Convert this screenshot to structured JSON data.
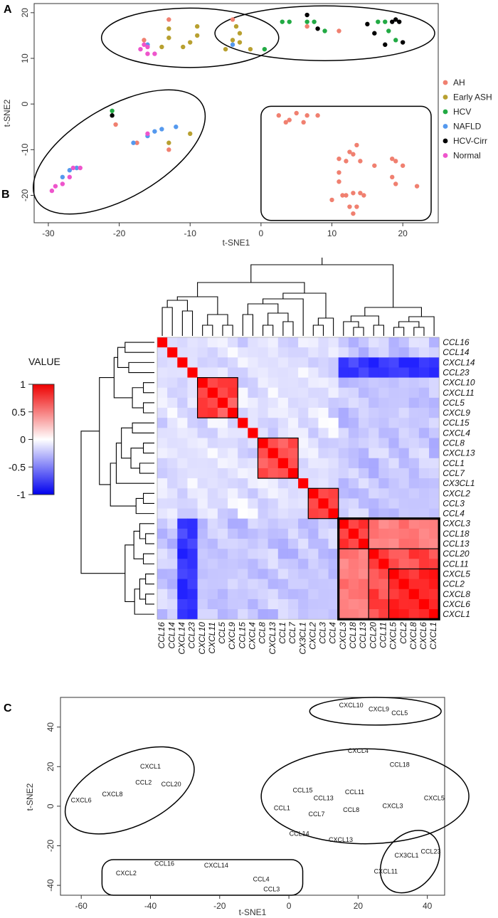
{
  "chart_data": [
    {
      "panel": "A",
      "type": "scatter",
      "xlabel": "t-SNE1",
      "ylabel": "t-SNE2",
      "xlim": [
        -32,
        25
      ],
      "ylim": [
        -26,
        22
      ],
      "xticks": [
        -30,
        -20,
        -10,
        0,
        10,
        20
      ],
      "yticks": [
        -20,
        -10,
        0,
        10,
        20
      ],
      "legend_position": "right",
      "series": [
        {
          "name": "AH",
          "color": "#f08070",
          "points": [
            [
              -13,
              18.5
            ],
            [
              -4,
              18.5
            ],
            [
              6.5,
              17
            ],
            [
              11,
              16
            ],
            [
              -16.5,
              14
            ],
            [
              -20.5,
              -4.5
            ],
            [
              -17.5,
              -8.5
            ],
            [
              -26,
              -14
            ],
            [
              -13,
              -10
            ],
            [
              2.5,
              -2.5
            ],
            [
              3.5,
              -4
            ],
            [
              4,
              -3.5
            ],
            [
              5,
              -2
            ],
            [
              6,
              -4
            ],
            [
              6.5,
              -2.5
            ],
            [
              8,
              -2.5
            ],
            [
              13.5,
              -9
            ],
            [
              12.5,
              -10.5
            ],
            [
              13,
              -11
            ],
            [
              11,
              -12
            ],
            [
              12,
              -12.5
            ],
            [
              14,
              -12.5
            ],
            [
              11,
              -15
            ],
            [
              11,
              -17
            ],
            [
              16,
              -13.5
            ],
            [
              18.5,
              -12
            ],
            [
              19,
              -12.5
            ],
            [
              20,
              -13.5
            ],
            [
              18.5,
              -16
            ],
            [
              19,
              -17.5
            ],
            [
              22,
              -18
            ],
            [
              10,
              -21
            ],
            [
              12,
              -20
            ],
            [
              13,
              -19.5
            ],
            [
              14,
              -19.5
            ],
            [
              14.5,
              -20
            ],
            [
              13.5,
              -22.5
            ],
            [
              12.5,
              -22.5
            ],
            [
              13,
              -24
            ],
            [
              11.5,
              -20
            ]
          ]
        },
        {
          "name": "Early ASH",
          "color": "#b8a030",
          "points": [
            [
              -13,
              16.5
            ],
            [
              -13,
              14.5
            ],
            [
              -14,
              12.5
            ],
            [
              -9,
              17
            ],
            [
              -9,
              15
            ],
            [
              -10,
              13.5
            ],
            [
              -11,
              12.5
            ],
            [
              -3.5,
              17
            ],
            [
              -3,
              15.5
            ],
            [
              -4,
              14
            ],
            [
              -3,
              13.5
            ],
            [
              -5,
              12
            ],
            [
              -1.5,
              12
            ],
            [
              -13,
              -8.5
            ],
            [
              -10,
              -6.5
            ]
          ]
        },
        {
          "name": "HCV",
          "color": "#22aa44",
          "points": [
            [
              3,
              18
            ],
            [
              4,
              18
            ],
            [
              6.5,
              18
            ],
            [
              7.5,
              18
            ],
            [
              9,
              16
            ],
            [
              16.5,
              18
            ],
            [
              17.5,
              18
            ],
            [
              18,
              16
            ],
            [
              19,
              14
            ],
            [
              0.5,
              12
            ],
            [
              -21,
              -1.5
            ]
          ]
        },
        {
          "name": "NAFLD",
          "color": "#5599ee",
          "points": [
            [
              -4,
              13
            ],
            [
              -16,
              13
            ],
            [
              -28,
              -16
            ],
            [
              -27,
              -14.5
            ],
            [
              -26,
              -14
            ],
            [
              -18,
              -8.5
            ],
            [
              -16,
              -7
            ],
            [
              -15,
              -6
            ],
            [
              -14,
              -5.5
            ],
            [
              -12,
              -5
            ]
          ]
        },
        {
          "name": "HCV-Cirr",
          "color": "#000000",
          "points": [
            [
              6.5,
              19.5
            ],
            [
              8,
              16.5
            ],
            [
              15,
              17.5
            ],
            [
              16,
              15.5
            ],
            [
              18.5,
              18
            ],
            [
              19,
              18.5
            ],
            [
              19.5,
              18
            ],
            [
              20,
              13.5
            ],
            [
              17.5,
              13
            ],
            [
              -21,
              -2.5
            ]
          ]
        },
        {
          "name": "Normal",
          "color": "#ee55cc",
          "points": [
            [
              -16.5,
              13
            ],
            [
              -16,
              12.5
            ],
            [
              -17,
              12
            ],
            [
              -16,
              11
            ],
            [
              -15,
              11
            ],
            [
              -29.5,
              -19
            ],
            [
              -29,
              -18
            ],
            [
              -28,
              -17.5
            ],
            [
              -27,
              -16
            ],
            [
              -26.5,
              -14
            ],
            [
              -25.5,
              -14
            ],
            [
              -16,
              -6.5
            ]
          ]
        }
      ],
      "legend": [
        "AH",
        "Early ASH",
        "HCV",
        "NAFLD",
        "HCV-Cirr",
        "Normal"
      ],
      "annotations": "five circled clusters"
    },
    {
      "panel": "B",
      "type": "heatmap",
      "colorbar_title": "VALUE",
      "colorbar_ticks": [
        "1",
        "0.5",
        "0",
        "-0.5",
        "-1"
      ],
      "colorbar_range": [
        -1,
        1
      ],
      "rows": [
        "CCL16",
        "CCL14",
        "CXCL14",
        "CCL23",
        "CXCL10",
        "CXCL11",
        "CCL5",
        "CXCL9",
        "CCL15",
        "CXCL4",
        "CCL8",
        "CXCL13",
        "CCL1",
        "CCL7",
        "CX3CL1",
        "CXCL2",
        "CCL3",
        "CCL4",
        "CXCL3",
        "CCL18",
        "CCL13",
        "CCL20",
        "CCL11",
        "CXCL5",
        "CCL2",
        "CXCL8",
        "CXCL6",
        "CXCL1"
      ],
      "columns": [
        "CCL16",
        "CCL14",
        "CXCL14",
        "CCL23",
        "CXCL10",
        "CXCL11",
        "CCL5",
        "CXCL9",
        "CCL15",
        "CXCL4",
        "CCL8",
        "CXCL13",
        "CCL1",
        "CCL7",
        "CX3CL1",
        "CXCL2",
        "CCL3",
        "CCL4",
        "CXCL3",
        "CCL18",
        "CCL13",
        "CCL20",
        "CCL11",
        "CXCL5",
        "CCL2",
        "CXCL8",
        "CXCL6",
        "CXCL1"
      ],
      "clusters": [
        [
          4,
          7
        ],
        [
          10,
          13
        ],
        [
          15,
          17
        ],
        [
          18,
          27
        ],
        [
          18,
          20
        ],
        [
          21,
          27
        ],
        [
          23,
          27
        ]
      ],
      "emphasized_cluster": [
        18,
        27
      ]
    },
    {
      "panel": "C",
      "type": "scatter",
      "xlabel": "t-SNE1",
      "ylabel": "t-SNE2",
      "xlim": [
        -66,
        45
      ],
      "ylim": [
        -45,
        55
      ],
      "xticks": [
        -60,
        -40,
        -20,
        0,
        20,
        40
      ],
      "yticks": [
        -40,
        -20,
        0,
        20,
        40
      ],
      "points": [
        {
          "label": "CXCL10",
          "x": 18,
          "y": 50
        },
        {
          "label": "CXCL9",
          "x": 26,
          "y": 48
        },
        {
          "label": "CCL5",
          "x": 32,
          "y": 46
        },
        {
          "label": "CXCL1",
          "x": -40,
          "y": 19
        },
        {
          "label": "CCL2",
          "x": -42,
          "y": 11
        },
        {
          "label": "CCL20",
          "x": -34,
          "y": 10
        },
        {
          "label": "CXCL8",
          "x": -51,
          "y": 5
        },
        {
          "label": "CXCL6",
          "x": -60,
          "y": 2
        },
        {
          "label": "CXCL4",
          "x": 20,
          "y": 27
        },
        {
          "label": "CCL18",
          "x": 32,
          "y": 20
        },
        {
          "label": "CCL15",
          "x": 4,
          "y": 7
        },
        {
          "label": "CCL11",
          "x": 19,
          "y": 6
        },
        {
          "label": "CCL13",
          "x": 10,
          "y": 3
        },
        {
          "label": "CXCL5",
          "x": 42,
          "y": 3
        },
        {
          "label": "CCL1",
          "x": -2,
          "y": -2
        },
        {
          "label": "CCL7",
          "x": 8,
          "y": -5
        },
        {
          "label": "CCL8",
          "x": 18,
          "y": -3
        },
        {
          "label": "CXCL3",
          "x": 30,
          "y": -1
        },
        {
          "label": "CCL14",
          "x": 3,
          "y": -15
        },
        {
          "label": "CXCL13",
          "x": 15,
          "y": -18
        },
        {
          "label": "CX3CL1",
          "x": 34,
          "y": -26
        },
        {
          "label": "CCL23",
          "x": 41,
          "y": -24
        },
        {
          "label": "CXCL11",
          "x": 28,
          "y": -34
        },
        {
          "label": "CCL16",
          "x": -36,
          "y": -30
        },
        {
          "label": "CXCL14",
          "x": -21,
          "y": -31
        },
        {
          "label": "CXCL2",
          "x": -47,
          "y": -35
        },
        {
          "label": "CCL4",
          "x": -8,
          "y": -38
        },
        {
          "label": "CCL3",
          "x": -5,
          "y": -43
        }
      ],
      "annotations": "five circled clusters"
    }
  ]
}
